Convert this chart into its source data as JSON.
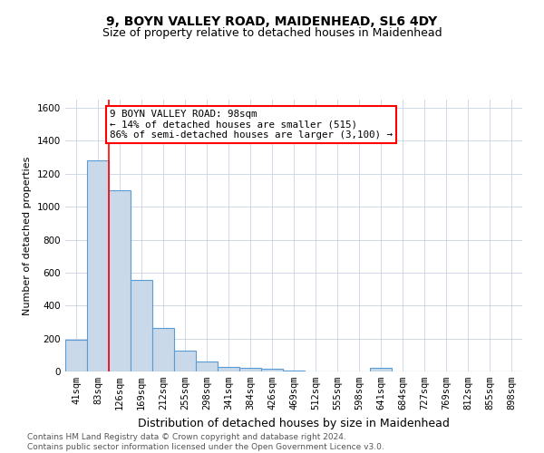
{
  "title1": "9, BOYN VALLEY ROAD, MAIDENHEAD, SL6 4DY",
  "title2": "Size of property relative to detached houses in Maidenhead",
  "xlabel": "Distribution of detached houses by size in Maidenhead",
  "ylabel": "Number of detached properties",
  "categories": [
    "41sqm",
    "83sqm",
    "126sqm",
    "169sqm",
    "212sqm",
    "255sqm",
    "298sqm",
    "341sqm",
    "384sqm",
    "426sqm",
    "469sqm",
    "512sqm",
    "555sqm",
    "598sqm",
    "641sqm",
    "684sqm",
    "727sqm",
    "769sqm",
    "812sqm",
    "855sqm",
    "898sqm"
  ],
  "values": [
    190,
    1280,
    1100,
    555,
    265,
    125,
    60,
    30,
    20,
    15,
    5,
    2,
    2,
    2,
    20,
    0,
    0,
    0,
    0,
    0,
    0
  ],
  "bar_color": "#c9d9ea",
  "bar_edge_color": "#5b9bd5",
  "grid_color": "#d0d8e8",
  "annotation_line1": "9 BOYN VALLEY ROAD: 98sqm",
  "annotation_line2": "← 14% of detached houses are smaller (515)",
  "annotation_line3": "86% of semi-detached houses are larger (3,100) →",
  "red_line_x": 1.5,
  "ylim": [
    0,
    1650
  ],
  "yticks": [
    0,
    200,
    400,
    600,
    800,
    1000,
    1200,
    1400,
    1600
  ],
  "footer1": "Contains HM Land Registry data © Crown copyright and database right 2024.",
  "footer2": "Contains public sector information licensed under the Open Government Licence v3.0.",
  "bg_color": "#ffffff",
  "title1_fontsize": 10,
  "title2_fontsize": 9,
  "ylabel_fontsize": 8,
  "xlabel_fontsize": 9,
  "tick_fontsize": 7.5,
  "footer_fontsize": 6.5,
  "ann_fontsize": 7.8
}
